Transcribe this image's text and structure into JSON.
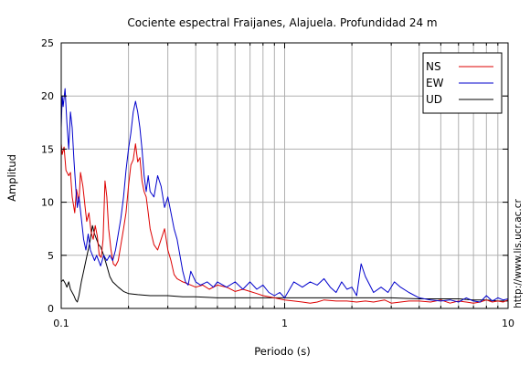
{
  "chart_data": {
    "type": "line",
    "title": "Cociente espectral Fraijanes, Alajuela. Profundidad 24 m",
    "xlabel": "Periodo (s)",
    "ylabel": "Amplitud",
    "x_scale": "log",
    "xlim": [
      0.1,
      10
    ],
    "ylim": [
      0,
      25
    ],
    "grid": true,
    "legend_position": "top-right",
    "x_tick_labels": [
      "0.1",
      "1",
      "10"
    ],
    "x_ticks": [
      0.1,
      1,
      10
    ],
    "y_tick_labels": [
      "0",
      "5",
      "10",
      "15",
      "20",
      "25"
    ],
    "y_ticks": [
      0,
      5,
      10,
      15,
      20,
      25
    ],
    "credit": "http://www.lis.ucr.ac.cr",
    "series": [
      {
        "name": "NS",
        "color": "#dd0000",
        "x": [
          0.1,
          0.101,
          0.103,
          0.105,
          0.108,
          0.11,
          0.112,
          0.115,
          0.117,
          0.12,
          0.122,
          0.125,
          0.128,
          0.13,
          0.133,
          0.136,
          0.139,
          0.142,
          0.145,
          0.148,
          0.151,
          0.154,
          0.157,
          0.16,
          0.163,
          0.167,
          0.171,
          0.175,
          0.18,
          0.185,
          0.19,
          0.195,
          0.2,
          0.205,
          0.21,
          0.215,
          0.22,
          0.225,
          0.23,
          0.235,
          0.24,
          0.245,
          0.25,
          0.26,
          0.27,
          0.28,
          0.29,
          0.3,
          0.31,
          0.32,
          0.33,
          0.35,
          0.37,
          0.4,
          0.43,
          0.46,
          0.5,
          0.55,
          0.6,
          0.65,
          0.7,
          0.75,
          0.8,
          0.85,
          0.9,
          1.0,
          1.1,
          1.2,
          1.3,
          1.4,
          1.5,
          1.7,
          1.9,
          2.1,
          2.3,
          2.5,
          2.8,
          3.0,
          3.3,
          3.6,
          4.0,
          4.5,
          5.0,
          5.5,
          6.0,
          6.5,
          7.0,
          7.5,
          8.0,
          8.5,
          9.0,
          9.5,
          10.0
        ],
        "values": [
          15.5,
          14.5,
          15.2,
          13.0,
          12.5,
          12.8,
          10.5,
          9.0,
          11.2,
          10.0,
          12.8,
          11.5,
          9.5,
          8.2,
          9.0,
          7.2,
          6.5,
          7.8,
          6.8,
          5.0,
          4.8,
          6.5,
          12.0,
          10.5,
          7.5,
          5.5,
          4.2,
          4.0,
          4.5,
          6.0,
          7.5,
          9.0,
          11.5,
          13.5,
          14.0,
          15.5,
          13.8,
          14.2,
          12.0,
          11.0,
          10.5,
          9.0,
          7.5,
          6.0,
          5.5,
          6.5,
          7.5,
          5.5,
          4.5,
          3.2,
          2.8,
          2.5,
          2.3,
          2.0,
          2.2,
          1.8,
          2.2,
          2.0,
          1.6,
          1.8,
          1.6,
          1.4,
          1.2,
          1.1,
          1.0,
          0.8,
          0.7,
          0.6,
          0.5,
          0.6,
          0.8,
          0.7,
          0.7,
          0.6,
          0.7,
          0.6,
          0.8,
          0.5,
          0.6,
          0.7,
          0.7,
          0.6,
          0.8,
          0.5,
          0.7,
          0.6,
          0.5,
          0.6,
          0.8,
          0.6,
          0.7,
          0.6,
          0.8
        ]
      },
      {
        "name": "EW",
        "color": "#0000cc",
        "x": [
          0.1,
          0.101,
          0.102,
          0.104,
          0.106,
          0.108,
          0.11,
          0.112,
          0.114,
          0.116,
          0.118,
          0.12,
          0.123,
          0.126,
          0.129,
          0.132,
          0.135,
          0.138,
          0.141,
          0.144,
          0.147,
          0.15,
          0.155,
          0.16,
          0.165,
          0.17,
          0.175,
          0.18,
          0.185,
          0.19,
          0.195,
          0.2,
          0.205,
          0.21,
          0.215,
          0.22,
          0.225,
          0.23,
          0.235,
          0.24,
          0.245,
          0.25,
          0.26,
          0.27,
          0.28,
          0.29,
          0.3,
          0.31,
          0.32,
          0.33,
          0.34,
          0.35,
          0.36,
          0.37,
          0.38,
          0.4,
          0.42,
          0.45,
          0.48,
          0.5,
          0.55,
          0.6,
          0.65,
          0.7,
          0.75,
          0.8,
          0.85,
          0.9,
          0.95,
          1.0,
          1.1,
          1.2,
          1.3,
          1.4,
          1.5,
          1.6,
          1.7,
          1.8,
          1.9,
          2.0,
          2.1,
          2.2,
          2.3,
          2.5,
          2.7,
          2.9,
          3.1,
          3.3,
          3.6,
          4.0,
          4.5,
          5.0,
          5.5,
          6.0,
          6.5,
          7.0,
          7.5,
          8.0,
          8.5,
          9.0,
          9.5,
          10.0
        ],
        "values": [
          17.0,
          20.0,
          19.0,
          20.7,
          17.5,
          15.0,
          18.5,
          17.0,
          14.0,
          11.5,
          9.5,
          10.5,
          8.5,
          6.5,
          5.5,
          7.0,
          5.5,
          5.0,
          4.5,
          5.0,
          4.5,
          4.0,
          5.0,
          4.5,
          5.0,
          4.5,
          5.5,
          7.0,
          8.5,
          10.5,
          13.0,
          15.0,
          16.5,
          18.5,
          19.5,
          18.5,
          17.0,
          15.0,
          12.5,
          11.0,
          12.5,
          11.0,
          10.5,
          12.5,
          11.5,
          9.5,
          10.5,
          9.0,
          7.5,
          6.5,
          5.0,
          3.5,
          2.5,
          2.2,
          3.5,
          2.5,
          2.2,
          2.5,
          2.0,
          2.5,
          2.0,
          2.5,
          1.8,
          2.5,
          1.8,
          2.2,
          1.5,
          1.2,
          1.5,
          1.0,
          2.5,
          2.0,
          2.5,
          2.2,
          2.8,
          2.0,
          1.5,
          2.5,
          1.8,
          2.0,
          1.2,
          4.2,
          3.0,
          1.5,
          2.0,
          1.5,
          2.5,
          2.0,
          1.5,
          1.0,
          0.8,
          0.7,
          0.8,
          0.6,
          1.0,
          0.7,
          0.6,
          1.2,
          0.7,
          1.0,
          0.8,
          0.9
        ]
      },
      {
        "name": "UD",
        "color": "#000000",
        "x": [
          0.1,
          0.102,
          0.104,
          0.106,
          0.108,
          0.11,
          0.112,
          0.114,
          0.116,
          0.118,
          0.12,
          0.123,
          0.126,
          0.129,
          0.132,
          0.135,
          0.138,
          0.141,
          0.144,
          0.147,
          0.15,
          0.155,
          0.16,
          0.165,
          0.17,
          0.18,
          0.19,
          0.2,
          0.22,
          0.25,
          0.3,
          0.35,
          0.4,
          0.5,
          0.6,
          0.7,
          0.8,
          0.9,
          1.0,
          1.2,
          1.5,
          2.0,
          2.5,
          3.0,
          4.0,
          5.0,
          6.0,
          7.0,
          8.0,
          9.0,
          10.0
        ],
        "values": [
          2.5,
          2.7,
          2.4,
          2.0,
          2.5,
          1.8,
          1.5,
          1.2,
          0.8,
          0.6,
          1.2,
          2.5,
          3.5,
          4.5,
          5.5,
          6.5,
          7.8,
          7.0,
          6.5,
          6.0,
          5.8,
          5.0,
          4.0,
          3.0,
          2.5,
          2.0,
          1.6,
          1.4,
          1.3,
          1.2,
          1.2,
          1.1,
          1.1,
          1.0,
          1.0,
          1.0,
          1.0,
          1.0,
          1.0,
          1.0,
          1.0,
          1.0,
          1.0,
          1.0,
          0.9,
          0.9,
          0.9,
          0.8,
          0.8,
          0.7,
          0.7
        ]
      }
    ]
  }
}
